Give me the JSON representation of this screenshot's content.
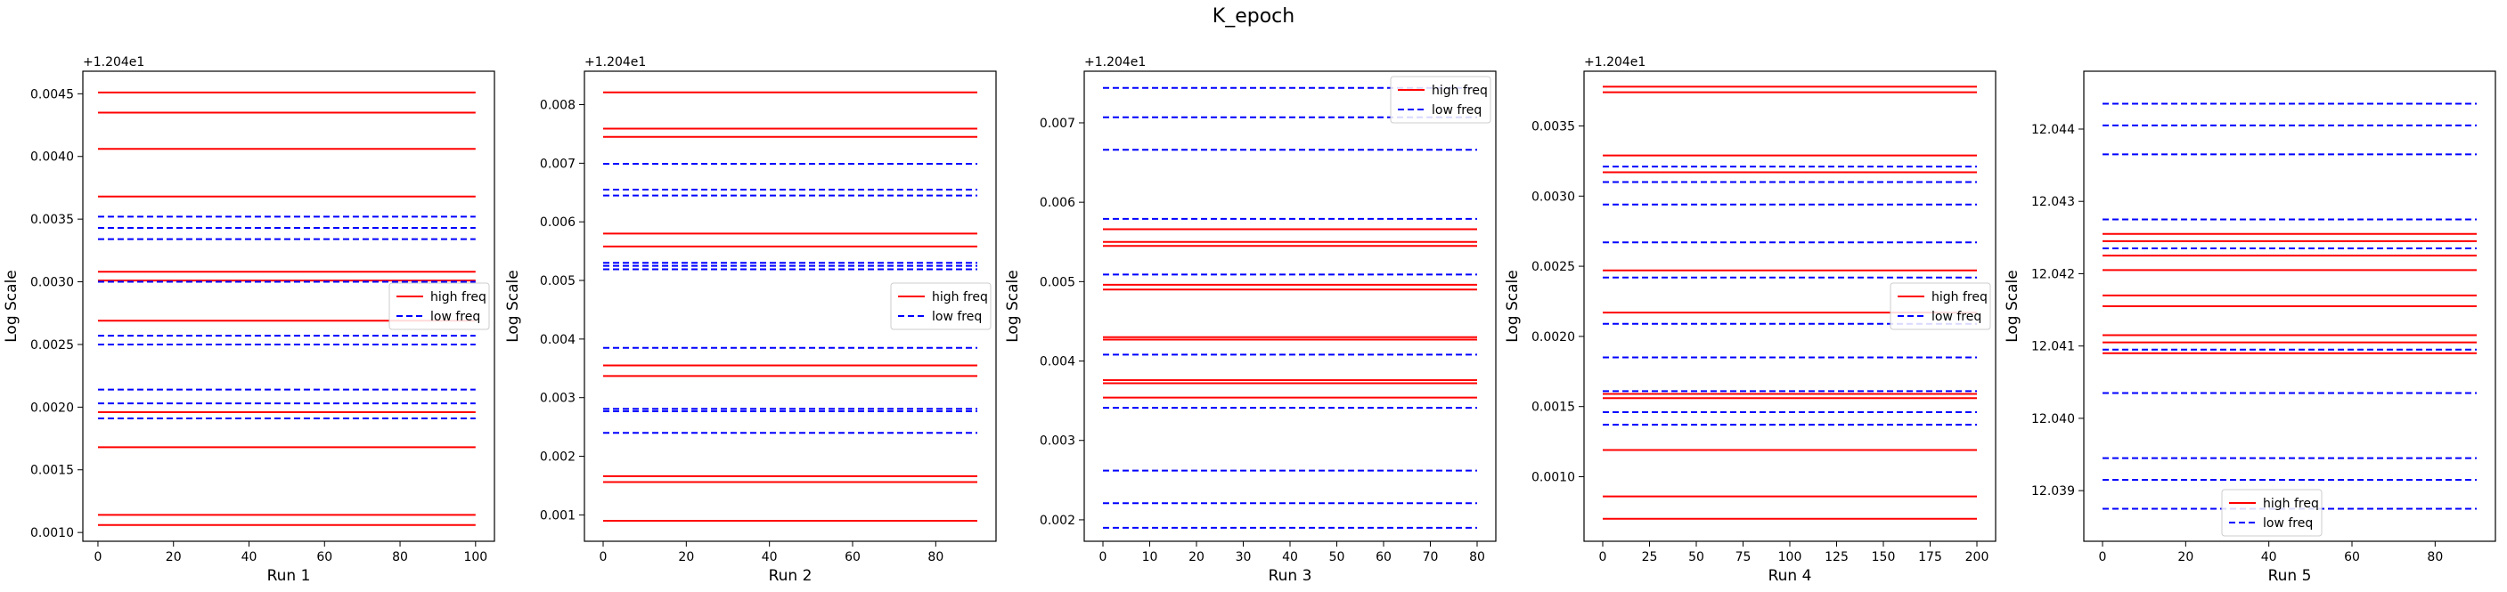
{
  "suptitle": "K_epoch",
  "colors": {
    "high": "#ff0000",
    "low": "#0000ff"
  },
  "chart_data": [
    {
      "type": "line",
      "xlabel": "Run 1",
      "ylabel": "Log Scale",
      "offset_label": "+1.204e1",
      "xlim": [
        -4,
        105
      ],
      "ylim": [
        0.00093,
        0.00468
      ],
      "xticks": [
        0,
        20,
        40,
        60,
        80,
        100
      ],
      "yticks": [
        0.001,
        0.0015,
        0.002,
        0.0025,
        0.003,
        0.0035,
        0.004,
        0.0045
      ],
      "ytick_labels": [
        "0.0010",
        "0.0015",
        "0.0020",
        "0.0025",
        "0.0030",
        "0.0035",
        "0.0040",
        "0.0045"
      ],
      "x_range": [
        0,
        100
      ],
      "legend": {
        "position": "right",
        "entries": [
          "high freq",
          "low freq"
        ]
      },
      "series": [
        {
          "name": "high freq",
          "style": "solid",
          "levels": [
            0.00451,
            0.00435,
            0.00406,
            0.00368,
            0.00308,
            0.00301,
            0.00269,
            0.00196,
            0.00168,
            0.00114,
            0.00106
          ]
        },
        {
          "name": "low freq",
          "style": "dashed",
          "levels": [
            0.00352,
            0.00343,
            0.00334,
            0.003,
            0.00257,
            0.0025,
            0.00214,
            0.00203,
            0.00191
          ]
        }
      ]
    },
    {
      "type": "line",
      "xlabel": "Run 2",
      "ylabel": "Log Scale",
      "offset_label": "+1.204e1",
      "xlim": [
        -4.5,
        94.5
      ],
      "ylim": [
        0.00055,
        0.00857
      ],
      "xticks": [
        0,
        20,
        40,
        60,
        80
      ],
      "yticks": [
        0.001,
        0.002,
        0.003,
        0.004,
        0.005,
        0.006,
        0.007,
        0.008
      ],
      "ytick_labels": [
        "0.001",
        "0.002",
        "0.003",
        "0.004",
        "0.005",
        "0.006",
        "0.007",
        "0.008"
      ],
      "x_range": [
        0,
        90
      ],
      "legend": {
        "position": "right",
        "entries": [
          "high freq",
          "low freq"
        ]
      },
      "series": [
        {
          "name": "high freq",
          "style": "solid",
          "levels": [
            0.00821,
            0.00759,
            0.00745,
            0.0058,
            0.00558,
            0.00355,
            0.00337,
            0.00166,
            0.00156,
            0.0009
          ]
        },
        {
          "name": "low freq",
          "style": "dashed",
          "levels": [
            0.00699,
            0.00655,
            0.00645,
            0.0053,
            0.00525,
            0.00519,
            0.00385,
            0.00281,
            0.00277,
            0.0024
          ]
        }
      ]
    },
    {
      "type": "line",
      "xlabel": "Run 3",
      "ylabel": "Log Scale",
      "offset_label": "+1.204e1",
      "xlim": [
        -4,
        84
      ],
      "ylim": [
        0.00173,
        0.00765
      ],
      "xticks": [
        0,
        10,
        20,
        30,
        40,
        50,
        60,
        70,
        80
      ],
      "yticks": [
        0.002,
        0.003,
        0.004,
        0.005,
        0.006,
        0.007
      ],
      "ytick_labels": [
        "0.002",
        "0.003",
        "0.004",
        "0.005",
        "0.006",
        "0.007"
      ],
      "x_range": [
        0,
        80
      ],
      "legend": {
        "position": "upper right",
        "entries": [
          "high freq",
          "low freq"
        ]
      },
      "series": [
        {
          "name": "high freq",
          "style": "solid",
          "levels": [
            0.00566,
            0.0055,
            0.00545,
            0.00496,
            0.0049,
            0.0043,
            0.00427,
            0.00376,
            0.00372,
            0.00354
          ]
        },
        {
          "name": "low freq",
          "style": "dashed",
          "levels": [
            0.00744,
            0.00707,
            0.00666,
            0.00579,
            0.00509,
            0.00408,
            0.00341,
            0.00262,
            0.00221,
            0.0019
          ]
        }
      ]
    },
    {
      "type": "line",
      "xlabel": "Run 4",
      "ylabel": "Log Scale",
      "offset_label": "+1.204e1",
      "xlim": [
        -10,
        210
      ],
      "ylim": [
        0.00054,
        0.00389
      ],
      "xticks": [
        0,
        25,
        50,
        75,
        100,
        125,
        150,
        175,
        200
      ],
      "yticks": [
        0.001,
        0.0015,
        0.002,
        0.0025,
        0.003,
        0.0035
      ],
      "ytick_labels": [
        "0.0010",
        "0.0015",
        "0.0020",
        "0.0025",
        "0.0030",
        "0.0035"
      ],
      "x_range": [
        0,
        200
      ],
      "legend": {
        "position": "right",
        "entries": [
          "high freq",
          "low freq"
        ]
      },
      "series": [
        {
          "name": "high freq",
          "style": "solid",
          "levels": [
            0.00378,
            0.00374,
            0.00329,
            0.00317,
            0.00247,
            0.00217,
            0.00159,
            0.00156,
            0.00119,
            0.00086,
            0.0007
          ]
        },
        {
          "name": "low freq",
          "style": "dashed",
          "levels": [
            0.00321,
            0.0031,
            0.00294,
            0.00267,
            0.00242,
            0.00209,
            0.00185,
            0.00161,
            0.00146,
            0.00137
          ]
        }
      ]
    },
    {
      "type": "line",
      "xlabel": "Run 5",
      "ylabel": "Log Scale",
      "offset_label": "",
      "xlim": [
        -4.5,
        94.5
      ],
      "ylim": [
        12.0383,
        12.0448
      ],
      "xticks": [
        0,
        20,
        40,
        60,
        80
      ],
      "yticks": [
        12.039,
        12.04,
        12.041,
        12.042,
        12.043,
        12.044
      ],
      "ytick_labels": [
        "12.039",
        "12.040",
        "12.041",
        "12.042",
        "12.043",
        "12.044"
      ],
      "x_range": [
        0,
        90
      ],
      "legend": {
        "position": "lower center",
        "entries": [
          "high freq",
          "low freq"
        ]
      },
      "series": [
        {
          "name": "high freq",
          "style": "solid",
          "levels": [
            12.04255,
            12.04245,
            12.04225,
            12.04205,
            12.0417,
            12.04155,
            12.04115,
            12.04105,
            12.0409
          ]
        },
        {
          "name": "low freq",
          "style": "dashed",
          "levels": [
            12.04435,
            12.04405,
            12.04365,
            12.04275,
            12.04235,
            12.04095,
            12.04035,
            12.03945,
            12.03915,
            12.03875
          ]
        }
      ]
    }
  ]
}
